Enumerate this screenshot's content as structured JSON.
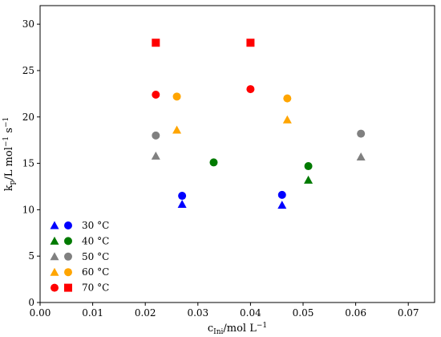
{
  "chart_data": {
    "type": "scatter",
    "xlabel": "c_Ini/mol L^-1",
    "ylabel": "k_p/L mol^-1 s^-1",
    "xlim": [
      0.0,
      0.075
    ],
    "ylim": [
      0,
      32
    ],
    "x_ticks": [
      "0.00",
      "0.01",
      "0.02",
      "0.03",
      "0.04",
      "0.05",
      "0.06",
      "0.07"
    ],
    "y_ticks": [
      "0",
      "5",
      "10",
      "15",
      "20",
      "25",
      "30"
    ],
    "legend_position": "lower-left",
    "legend": [
      {
        "label": "30 °C",
        "color": "#0000ff",
        "markers": [
          "triangle",
          "circle"
        ]
      },
      {
        "label": "40 °C",
        "color": "#007a00",
        "markers": [
          "triangle",
          "circle"
        ]
      },
      {
        "label": "50 °C",
        "color": "#808080",
        "markers": [
          "triangle",
          "circle"
        ]
      },
      {
        "label": "60 °C",
        "color": "#ffa500",
        "markers": [
          "triangle",
          "circle"
        ]
      },
      {
        "label": "70 °C",
        "color": "#ff0000",
        "markers": [
          "circle",
          "square"
        ]
      }
    ],
    "series": [
      {
        "color": "#0000ff",
        "marker": "triangle",
        "points": [
          [
            0.027,
            10.6
          ],
          [
            0.046,
            10.5
          ]
        ]
      },
      {
        "color": "#0000ff",
        "marker": "circle",
        "points": [
          [
            0.027,
            11.5
          ],
          [
            0.046,
            11.6
          ]
        ]
      },
      {
        "color": "#007a00",
        "marker": "triangle",
        "points": [
          [
            0.051,
            13.2
          ]
        ]
      },
      {
        "color": "#007a00",
        "marker": "circle",
        "points": [
          [
            0.033,
            15.1
          ],
          [
            0.051,
            14.7
          ]
        ]
      },
      {
        "color": "#808080",
        "marker": "triangle",
        "points": [
          [
            0.022,
            15.8
          ],
          [
            0.061,
            15.7
          ]
        ]
      },
      {
        "color": "#808080",
        "marker": "circle",
        "points": [
          [
            0.022,
            18.0
          ],
          [
            0.061,
            18.2
          ]
        ]
      },
      {
        "color": "#ffa500",
        "marker": "triangle",
        "points": [
          [
            0.026,
            18.6
          ],
          [
            0.047,
            19.7
          ]
        ]
      },
      {
        "color": "#ffa500",
        "marker": "circle",
        "points": [
          [
            0.026,
            22.2
          ],
          [
            0.047,
            22.0
          ]
        ]
      },
      {
        "color": "#ff0000",
        "marker": "circle",
        "points": [
          [
            0.022,
            22.4
          ],
          [
            0.04,
            23.0
          ]
        ]
      },
      {
        "color": "#ff0000",
        "marker": "square",
        "points": [
          [
            0.022,
            28.0
          ],
          [
            0.04,
            28.0
          ]
        ]
      }
    ]
  }
}
